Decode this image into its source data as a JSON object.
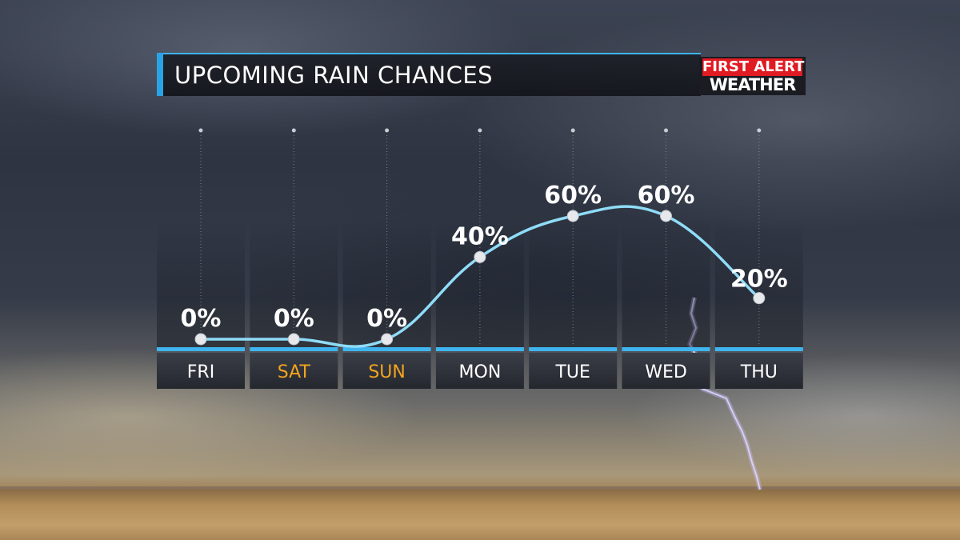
{
  "header": {
    "title": "UPCOMING RAIN CHANCES",
    "logo_top": "FIRST ALERT",
    "logo_bottom": "WEATHER"
  },
  "colors": {
    "accent": "#3fb4ee",
    "curve": "#8fdcf8",
    "weekend_label": "#f3a31f",
    "logo_red": "#e01b22"
  },
  "chart_data": {
    "type": "line",
    "categories": [
      "FRI",
      "SAT",
      "SUN",
      "MON",
      "TUE",
      "WED",
      "THU"
    ],
    "weekend": [
      false,
      true,
      true,
      false,
      false,
      false,
      false
    ],
    "series": [
      {
        "values": [
          0,
          0,
          0,
          40,
          60,
          60,
          20
        ],
        "labels": [
          "0%",
          "0%",
          "0%",
          "40%",
          "60%",
          "60%",
          "20%"
        ]
      }
    ],
    "ylim": [
      0,
      100
    ],
    "smooth": true,
    "grid": "dotted vertical guides per day"
  }
}
